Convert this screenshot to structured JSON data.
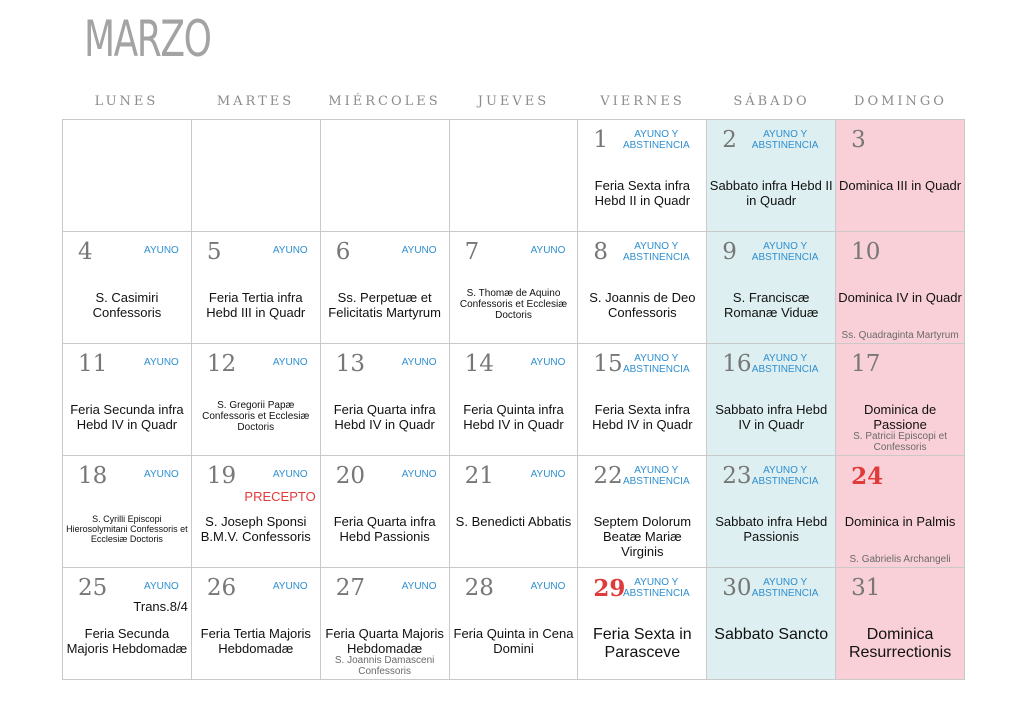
{
  "month": "MARZO",
  "weekdays": [
    "LUNES",
    "MARTES",
    "MIÉRCOLES",
    "JUEVES",
    "VIERNES",
    "SÁBADO",
    "DOMINGO"
  ],
  "colors": {
    "saturday": "#ddeff0",
    "sunday": "#f9d0d7",
    "tag": "#2e8fd0",
    "red": "#e03a3a"
  },
  "cells": [
    {
      "day": "",
      "tag": "",
      "feast": "",
      "sub": ""
    },
    {
      "day": "",
      "tag": "",
      "feast": "",
      "sub": ""
    },
    {
      "day": "",
      "tag": "",
      "feast": "",
      "sub": ""
    },
    {
      "day": "",
      "tag": "",
      "feast": "",
      "sub": ""
    },
    {
      "day": "1",
      "tag": "AYUNO Y ABSTINENCIA",
      "feast": "Feria Sexta infra Hebd II in Quadr",
      "sub": ""
    },
    {
      "day": "2",
      "tag": "AYUNO Y ABSTINENCIA",
      "feast": "Sabbato infra Hebd II in Quadr",
      "sub": ""
    },
    {
      "day": "3",
      "tag": "",
      "feast": "Dominica III in Quadr",
      "sub": ""
    },
    {
      "day": "4",
      "tag": "AYUNO",
      "feast": "S. Casimiri Confessoris",
      "sub": ""
    },
    {
      "day": "5",
      "tag": "AYUNO",
      "feast": "Feria Tertia infra Hebd III in Quadr",
      "sub": ""
    },
    {
      "day": "6",
      "tag": "AYUNO",
      "feast": "Ss. Perpetuæ et Felicitatis Martyrum",
      "sub": ""
    },
    {
      "day": "7",
      "tag": "AYUNO",
      "feast": "S. Thomæ de Aquino Confessoris et Ecclesiæ Doctoris",
      "sub": ""
    },
    {
      "day": "8",
      "tag": "AYUNO Y ABSTINENCIA",
      "feast": "S. Joannis de Deo Confessoris",
      "sub": ""
    },
    {
      "day": "9",
      "tag": "AYUNO Y ABSTINENCIA",
      "feast": "S. Franciscæ Romanæ Viduæ",
      "sub": ""
    },
    {
      "day": "10",
      "tag": "",
      "feast": "Dominica IV in Quadr",
      "sub": "Ss. Quadraginta Martyrum"
    },
    {
      "day": "11",
      "tag": "AYUNO",
      "feast": "Feria Secunda infra Hebd IV in Quadr",
      "sub": ""
    },
    {
      "day": "12",
      "tag": "AYUNO",
      "feast": "S. Gregorii Papæ Confessoris et Ecclesiæ Doctoris",
      "sub": ""
    },
    {
      "day": "13",
      "tag": "AYUNO",
      "feast": "Feria Quarta infra Hebd IV in Quadr",
      "sub": ""
    },
    {
      "day": "14",
      "tag": "AYUNO",
      "feast": "Feria Quinta infra Hebd IV in Quadr",
      "sub": ""
    },
    {
      "day": "15",
      "tag": "AYUNO Y ABSTINENCIA",
      "feast": "Feria Sexta infra Hebd IV in Quadr",
      "sub": ""
    },
    {
      "day": "16",
      "tag": "AYUNO Y ABSTINENCIA",
      "feast": "Sabbato infra Hebd IV in Quadr",
      "sub": ""
    },
    {
      "day": "17",
      "tag": "",
      "feast": "Dominica de Passione",
      "sub": "S. Patricii Episcopi et Confessoris"
    },
    {
      "day": "18",
      "tag": "AYUNO",
      "feast": "S. Cyrilli Episcopi Hierosolymitani Confessoris et Ecclesiæ Doctoris",
      "sub": ""
    },
    {
      "day": "19",
      "tag": "AYUNO",
      "precept": "PRECEPTO",
      "feast": "S. Joseph Sponsi B.M.V. Confessoris",
      "sub": ""
    },
    {
      "day": "20",
      "tag": "AYUNO",
      "feast": "Feria Quarta infra Hebd Passionis",
      "sub": ""
    },
    {
      "day": "21",
      "tag": "AYUNO",
      "feast": "S. Benedicti Abbatis",
      "sub": ""
    },
    {
      "day": "22",
      "tag": "AYUNO Y ABSTINENCIA",
      "feast": "Septem Dolorum Beatæ Mariæ Virginis",
      "sub": ""
    },
    {
      "day": "23",
      "tag": "AYUNO Y ABSTINENCIA",
      "feast": "Sabbato infra Hebd Passionis",
      "sub": ""
    },
    {
      "day": "24",
      "tag": "",
      "feast": "Dominica in Palmis",
      "sub": "S. Gabrielis Archangeli"
    },
    {
      "day": "25",
      "tag": "AYUNO",
      "trans": "Trans.8/4",
      "feast": "Feria Secunda Majoris Hebdomadæ",
      "sub": ""
    },
    {
      "day": "26",
      "tag": "AYUNO",
      "feast": "Feria Tertia Majoris Hebdomadæ",
      "sub": ""
    },
    {
      "day": "27",
      "tag": "AYUNO",
      "feast": "Feria Quarta Majoris Hebdomadæ",
      "sub": "S. Joannis Damasceni Confessoris"
    },
    {
      "day": "28",
      "tag": "AYUNO",
      "feast": "Feria Quinta in Cena Domini",
      "sub": ""
    },
    {
      "day": "29",
      "tag": "AYUNO Y ABSTINENCIA",
      "feast": "Feria Sexta in Parasceve",
      "sub": ""
    },
    {
      "day": "30",
      "tag": "AYUNO Y ABSTINENCIA",
      "feast": "Sabbato Sancto",
      "sub": ""
    },
    {
      "day": "31",
      "tag": "",
      "feast": "Dominica Resurrectionis",
      "sub": ""
    }
  ]
}
